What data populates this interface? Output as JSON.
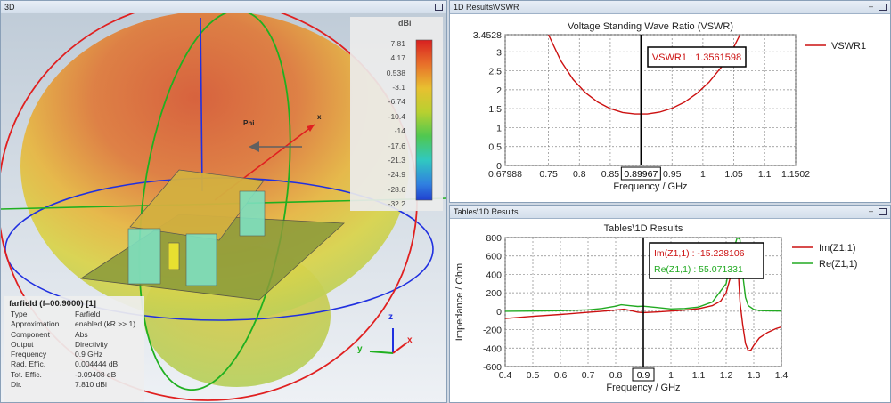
{
  "panels": {
    "view3d_title": "3D",
    "vswr_title": "1D Results\\VSWR",
    "tables_title": "Tables\\1D Results"
  },
  "farfield": {
    "colorbar_unit": "dBi",
    "colorbar_ticks": [
      "7.81",
      "4.17",
      "0.538",
      "-3.1",
      "-6.74",
      "-10.4",
      "-14",
      "-17.6",
      "-21.3",
      "-24.9",
      "-28.6",
      "-32.2"
    ],
    "phi_label": "Phi",
    "axis_labels": {
      "x": "x",
      "y": "y",
      "z": "z"
    },
    "info": {
      "header": "farfield (f=00.9000) [1]",
      "rows": [
        {
          "key": "Type",
          "value": "Farfield"
        },
        {
          "key": "Approximation",
          "value": "enabled (kR >> 1)"
        },
        {
          "key": "Component",
          "value": "Abs"
        },
        {
          "key": "Output",
          "value": "Directivity"
        },
        {
          "key": "Frequency",
          "value": "0.9 GHz"
        },
        {
          "key": "Rad. Effic.",
          "value": "0.004444 dB"
        },
        {
          "key": "Tot. Effic.",
          "value": "-0.09408 dB"
        },
        {
          "key": "Dir.",
          "value": "7.810 dBi"
        }
      ]
    }
  },
  "chart_data": [
    {
      "type": "line",
      "title": "Voltage Standing Wave Ratio (VSWR)",
      "xlabel": "Frequency / GHz",
      "ylabel": "",
      "xlim": [
        0.67988,
        1.1502
      ],
      "ylim": [
        0,
        3.4528
      ],
      "x_ticks": [
        "0.67988",
        "0.75",
        "0.8",
        "0.85",
        "0.95",
        "1",
        "1.05",
        "1.1",
        "1.1502"
      ],
      "y_ticks": [
        "3.4528",
        "3",
        "2.5",
        "2",
        "1.5",
        "1",
        "0.5",
        "0"
      ],
      "marker": {
        "x": 0.89967,
        "label": "0.89967",
        "annotation": "VSWR1 : 1.3561598"
      },
      "series": [
        {
          "name": "VSWR1",
          "color": "#cc1111",
          "x": [
            0.75,
            0.77,
            0.79,
            0.81,
            0.83,
            0.85,
            0.87,
            0.89,
            0.91,
            0.93,
            0.95,
            0.97,
            0.99,
            1.01,
            1.03,
            1.05,
            1.06
          ],
          "y": [
            3.45,
            2.76,
            2.27,
            1.92,
            1.67,
            1.5,
            1.4,
            1.36,
            1.36,
            1.41,
            1.51,
            1.67,
            1.9,
            2.2,
            2.6,
            3.12,
            3.45
          ]
        }
      ]
    },
    {
      "type": "line",
      "title": "Tables\\1D Results",
      "xlabel": "Frequency / GHz",
      "ylabel": "Impedance / Ohm",
      "xlim": [
        0.4,
        1.4
      ],
      "ylim": [
        -600,
        800
      ],
      "x_ticks": [
        "0.4",
        "0.5",
        "0.6",
        "0.7",
        "0.8",
        "0.9",
        "1",
        "1.1",
        "1.2",
        "1.3",
        "1.4"
      ],
      "y_ticks": [
        "800",
        "600",
        "400",
        "200",
        "0",
        "-200",
        "-400",
        "-600"
      ],
      "marker": {
        "x": 0.9,
        "label": "0.9",
        "annotations": [
          "Im(Z1,1) : -15.228106",
          "Re(Z1,1) : 55.071331"
        ]
      },
      "series": [
        {
          "name": "Im(Z1,1)",
          "color": "#cc1111",
          "x": [
            0.4,
            0.5,
            0.6,
            0.7,
            0.75,
            0.8,
            0.83,
            0.85,
            0.88,
            0.9,
            0.95,
            1.0,
            1.05,
            1.1,
            1.15,
            1.18,
            1.2,
            1.22,
            1.24,
            1.25,
            1.26,
            1.27,
            1.28,
            1.29,
            1.3,
            1.32,
            1.35,
            1.38,
            1.4
          ],
          "y": [
            -80,
            -55,
            -35,
            -12,
            0,
            12,
            22,
            10,
            -10,
            -15,
            -8,
            2,
            12,
            28,
            60,
            110,
            200,
            420,
            650,
            100,
            -150,
            -350,
            -430,
            -420,
            -370,
            -290,
            -230,
            -190,
            -170
          ]
        },
        {
          "name": "Re(Z1,1)",
          "color": "#22aa22",
          "x": [
            0.4,
            0.5,
            0.6,
            0.7,
            0.75,
            0.8,
            0.82,
            0.85,
            0.88,
            0.9,
            0.95,
            1.0,
            1.05,
            1.1,
            1.15,
            1.2,
            1.22,
            1.24,
            1.25,
            1.26,
            1.27,
            1.28,
            1.3,
            1.32,
            1.35,
            1.4
          ],
          "y": [
            0,
            2,
            5,
            15,
            30,
            55,
            70,
            60,
            52,
            55,
            40,
            25,
            30,
            45,
            100,
            300,
            600,
            800,
            780,
            400,
            150,
            60,
            20,
            8,
            4,
            2
          ]
        }
      ]
    }
  ]
}
